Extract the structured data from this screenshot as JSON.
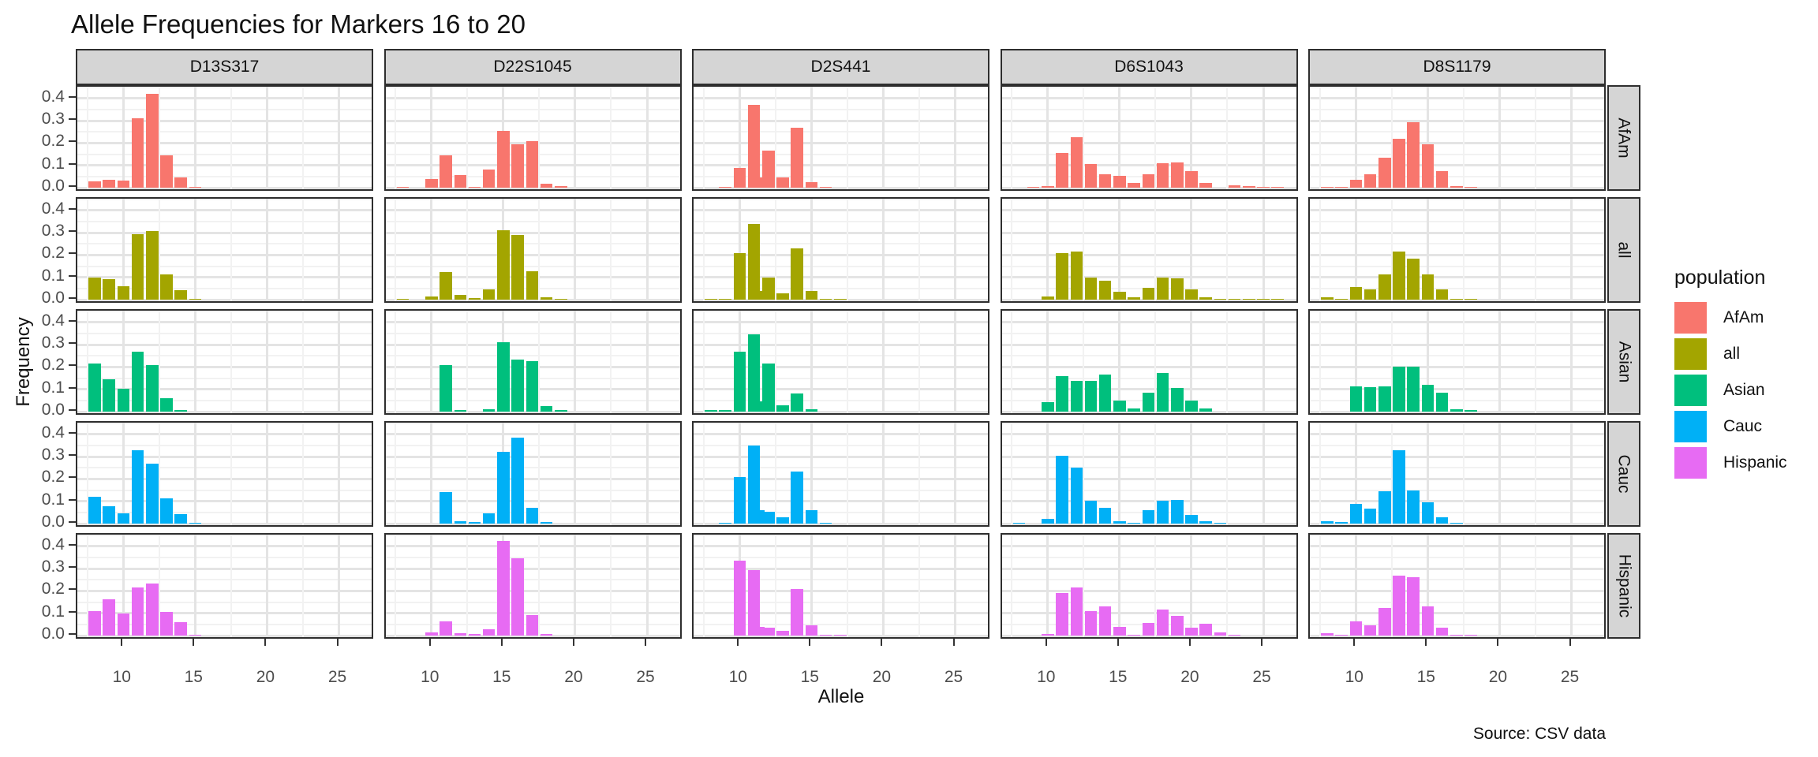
{
  "chart_data": {
    "type": "bar",
    "title": "Allele Frequencies for Markers 16 to 20",
    "xlabel": "Allele",
    "ylabel": "Frequency",
    "caption": "Source: CSV data",
    "legend": {
      "title": "population",
      "entries": [
        {
          "label": "AfAm",
          "color": "#F8766D"
        },
        {
          "label": "all",
          "color": "#A3A500"
        },
        {
          "label": "Asian",
          "color": "#00BF7D"
        },
        {
          "label": "Cauc",
          "color": "#00B0F6"
        },
        {
          "label": "Hispanic",
          "color": "#E76BF3"
        }
      ]
    },
    "facet_columns": [
      "D13S317",
      "D22S1045",
      "D2S441",
      "D6S1043",
      "D8S1179"
    ],
    "facet_rows": [
      "AfAm",
      "all",
      "Asian",
      "Cauc",
      "Hispanic"
    ],
    "x_tick_values": [
      10,
      15,
      20,
      25
    ],
    "x_tick_labels": [
      "10",
      "15",
      "20",
      "25"
    ],
    "y_tick_values": [
      0.0,
      0.1,
      0.2,
      0.3,
      0.4
    ],
    "y_tick_labels": [
      "0.0",
      "0.1",
      "0.2",
      "0.3",
      "0.4"
    ],
    "x_minor": [
      7.5,
      12.5,
      17.5,
      22.5,
      27.5
    ],
    "y_minor": [
      0.05,
      0.15,
      0.25,
      0.35,
      0.45
    ],
    "x_domain": [
      6.8,
      27.5
    ],
    "y_domain": [
      -0.021,
      0.452
    ],
    "bar_width_units": 0.85,
    "grid": true,
    "legend_position": "right",
    "series": {
      "D13S317": {
        "AfAm": [
          [
            8,
            0.028
          ],
          [
            9,
            0.035
          ],
          [
            10,
            0.031
          ],
          [
            11,
            0.31
          ],
          [
            12,
            0.42
          ],
          [
            13,
            0.145
          ],
          [
            14,
            0.048
          ],
          [
            15,
            0.002
          ]
        ],
        "all": [
          [
            8,
            0.098
          ],
          [
            9,
            0.091
          ],
          [
            10,
            0.061
          ],
          [
            11,
            0.293
          ],
          [
            12,
            0.306
          ],
          [
            13,
            0.115
          ],
          [
            14,
            0.044
          ],
          [
            15,
            0.003
          ]
        ],
        "Asian": [
          [
            8,
            0.215
          ],
          [
            9,
            0.145
          ],
          [
            10,
            0.102
          ],
          [
            11,
            0.27
          ],
          [
            12,
            0.21
          ],
          [
            13,
            0.059
          ],
          [
            14,
            0.006
          ]
        ],
        "Cauc": [
          [
            8,
            0.121
          ],
          [
            9,
            0.078
          ],
          [
            10,
            0.048
          ],
          [
            11,
            0.33
          ],
          [
            12,
            0.268
          ],
          [
            13,
            0.115
          ],
          [
            14,
            0.042
          ],
          [
            15,
            0.003
          ]
        ],
        "Hispanic": [
          [
            8,
            0.11
          ],
          [
            9,
            0.164
          ],
          [
            10,
            0.099
          ],
          [
            11,
            0.216
          ],
          [
            12,
            0.234
          ],
          [
            13,
            0.105
          ],
          [
            14,
            0.06
          ],
          [
            15,
            0.004
          ]
        ]
      },
      "D22S1045": {
        "AfAm": [
          [
            8,
            0.004
          ],
          [
            10,
            0.038
          ],
          [
            11,
            0.145
          ],
          [
            12,
            0.056
          ],
          [
            13,
            0.005
          ],
          [
            14,
            0.08
          ],
          [
            15,
            0.255
          ],
          [
            16,
            0.195
          ],
          [
            17,
            0.21
          ],
          [
            18,
            0.018
          ],
          [
            19,
            0.007
          ]
        ],
        "all": [
          [
            8,
            0.004
          ],
          [
            10,
            0.015
          ],
          [
            11,
            0.125
          ],
          [
            12,
            0.02
          ],
          [
            13,
            0.006
          ],
          [
            14,
            0.048
          ],
          [
            15,
            0.312
          ],
          [
            16,
            0.29
          ],
          [
            17,
            0.128
          ],
          [
            18,
            0.012
          ],
          [
            19,
            0.004
          ]
        ],
        "Asian": [
          [
            11,
            0.21
          ],
          [
            12,
            0.008
          ],
          [
            14,
            0.01
          ],
          [
            15,
            0.312
          ],
          [
            16,
            0.235
          ],
          [
            17,
            0.225
          ],
          [
            18,
            0.025
          ],
          [
            19,
            0.008
          ]
        ],
        "Cauc": [
          [
            11,
            0.14
          ],
          [
            12,
            0.012
          ],
          [
            13,
            0.006
          ],
          [
            14,
            0.048
          ],
          [
            15,
            0.32
          ],
          [
            16,
            0.385
          ],
          [
            17,
            0.07
          ],
          [
            18,
            0.006
          ]
        ],
        "Hispanic": [
          [
            10,
            0.015
          ],
          [
            11,
            0.065
          ],
          [
            12,
            0.012
          ],
          [
            13,
            0.008
          ],
          [
            14,
            0.028
          ],
          [
            15,
            0.425
          ],
          [
            16,
            0.348
          ],
          [
            17,
            0.092
          ],
          [
            18,
            0.006
          ]
        ]
      },
      "D2S441": {
        "AfAm": [
          [
            9,
            0.004
          ],
          [
            10,
            0.088
          ],
          [
            11,
            0.37
          ],
          [
            11.3,
            0.048
          ],
          [
            12,
            0.165
          ],
          [
            13,
            0.045
          ],
          [
            14,
            0.27
          ],
          [
            15,
            0.026
          ],
          [
            16,
            0.003
          ]
        ],
        "all": [
          [
            8,
            0.003
          ],
          [
            9,
            0.004
          ],
          [
            10,
            0.21
          ],
          [
            11,
            0.34
          ],
          [
            11.3,
            0.04
          ],
          [
            12,
            0.1
          ],
          [
            13,
            0.03
          ],
          [
            14,
            0.23
          ],
          [
            15,
            0.038
          ],
          [
            16,
            0.003
          ],
          [
            17,
            0.002
          ]
        ],
        "Asian": [
          [
            8,
            0.008
          ],
          [
            9,
            0.008
          ],
          [
            10,
            0.268
          ],
          [
            11,
            0.348
          ],
          [
            11.3,
            0.045
          ],
          [
            12,
            0.215
          ],
          [
            13,
            0.03
          ],
          [
            14,
            0.08
          ],
          [
            15,
            0.012
          ]
        ],
        "Cauc": [
          [
            9,
            0.003
          ],
          [
            10,
            0.21
          ],
          [
            11,
            0.35
          ],
          [
            11.3,
            0.06
          ],
          [
            12,
            0.055
          ],
          [
            13,
            0.03
          ],
          [
            14,
            0.235
          ],
          [
            15,
            0.06
          ],
          [
            16,
            0.003
          ]
        ],
        "Hispanic": [
          [
            10,
            0.335
          ],
          [
            11,
            0.295
          ],
          [
            11.3,
            0.04
          ],
          [
            12,
            0.035
          ],
          [
            13,
            0.022
          ],
          [
            14,
            0.21
          ],
          [
            15,
            0.045
          ],
          [
            16,
            0.004
          ],
          [
            17,
            0.004
          ]
        ]
      },
      "D6S1043": {
        "AfAm": [
          [
            9,
            0.003
          ],
          [
            10,
            0.008
          ],
          [
            11,
            0.155
          ],
          [
            12,
            0.225
          ],
          [
            13,
            0.105
          ],
          [
            14,
            0.06
          ],
          [
            15,
            0.055
          ],
          [
            16,
            0.02
          ],
          [
            17,
            0.06
          ],
          [
            18,
            0.11
          ],
          [
            19,
            0.115
          ],
          [
            20,
            0.075
          ],
          [
            21,
            0.02
          ],
          [
            23,
            0.012
          ],
          [
            24,
            0.006
          ],
          [
            25,
            0.004
          ],
          [
            26,
            0.003
          ]
        ],
        "all": [
          [
            10,
            0.015
          ],
          [
            11,
            0.21
          ],
          [
            12,
            0.215
          ],
          [
            13,
            0.1
          ],
          [
            14,
            0.085
          ],
          [
            15,
            0.035
          ],
          [
            16,
            0.01
          ],
          [
            17,
            0.055
          ],
          [
            18,
            0.1
          ],
          [
            19,
            0.095
          ],
          [
            20,
            0.045
          ],
          [
            21,
            0.012
          ],
          [
            22,
            0.003
          ],
          [
            23,
            0.004
          ],
          [
            24,
            0.002
          ],
          [
            25,
            0.002
          ],
          [
            26,
            0.001
          ]
        ],
        "Asian": [
          [
            10,
            0.042
          ],
          [
            11,
            0.16
          ],
          [
            12,
            0.137
          ],
          [
            13,
            0.137
          ],
          [
            14,
            0.168
          ],
          [
            15,
            0.05
          ],
          [
            16,
            0.015
          ],
          [
            17,
            0.085
          ],
          [
            18,
            0.172
          ],
          [
            19,
            0.105
          ],
          [
            20,
            0.05
          ],
          [
            21,
            0.015
          ]
        ],
        "Cauc": [
          [
            8,
            0.002
          ],
          [
            10,
            0.02
          ],
          [
            11,
            0.305
          ],
          [
            12,
            0.25
          ],
          [
            13,
            0.103
          ],
          [
            14,
            0.07
          ],
          [
            15,
            0.012
          ],
          [
            16,
            0.005
          ],
          [
            17,
            0.06
          ],
          [
            18,
            0.102
          ],
          [
            19,
            0.108
          ],
          [
            20,
            0.04
          ],
          [
            21,
            0.012
          ],
          [
            22,
            0.003
          ]
        ],
        "Hispanic": [
          [
            10,
            0.008
          ],
          [
            11,
            0.19
          ],
          [
            12,
            0.215
          ],
          [
            13,
            0.11
          ],
          [
            14,
            0.132
          ],
          [
            15,
            0.04
          ],
          [
            16,
            0.005
          ],
          [
            17,
            0.056
          ],
          [
            18,
            0.116
          ],
          [
            19,
            0.088
          ],
          [
            20,
            0.036
          ],
          [
            21,
            0.052
          ],
          [
            22,
            0.015
          ],
          [
            23,
            0.005
          ]
        ]
      },
      "D8S1179": {
        "AfAm": [
          [
            8,
            0.005
          ],
          [
            9,
            0.004
          ],
          [
            10,
            0.035
          ],
          [
            11,
            0.06
          ],
          [
            12,
            0.135
          ],
          [
            13,
            0.22
          ],
          [
            14,
            0.295
          ],
          [
            15,
            0.195
          ],
          [
            16,
            0.075
          ],
          [
            17,
            0.006
          ],
          [
            18,
            0.003
          ]
        ],
        "all": [
          [
            8,
            0.012
          ],
          [
            9,
            0.002
          ],
          [
            10,
            0.058
          ],
          [
            11,
            0.048
          ],
          [
            12,
            0.115
          ],
          [
            13,
            0.215
          ],
          [
            14,
            0.185
          ],
          [
            15,
            0.115
          ],
          [
            16,
            0.045
          ],
          [
            17,
            0.004
          ],
          [
            18,
            0.002
          ]
        ],
        "Asian": [
          [
            10,
            0.115
          ],
          [
            11,
            0.11
          ],
          [
            12,
            0.115
          ],
          [
            13,
            0.2
          ],
          [
            14,
            0.2
          ],
          [
            15,
            0.122
          ],
          [
            16,
            0.086
          ],
          [
            17,
            0.012
          ],
          [
            18,
            0.008
          ]
        ],
        "Cauc": [
          [
            8,
            0.012
          ],
          [
            9,
            0.008
          ],
          [
            10,
            0.09
          ],
          [
            11,
            0.068
          ],
          [
            12,
            0.145
          ],
          [
            13,
            0.33
          ],
          [
            14,
            0.15
          ],
          [
            15,
            0.095
          ],
          [
            16,
            0.03
          ],
          [
            17,
            0.002
          ]
        ],
        "Hispanic": [
          [
            8,
            0.012
          ],
          [
            9,
            0.003
          ],
          [
            10,
            0.065
          ],
          [
            11,
            0.045
          ],
          [
            12,
            0.125
          ],
          [
            13,
            0.27
          ],
          [
            14,
            0.26
          ],
          [
            15,
            0.13
          ],
          [
            16,
            0.035
          ],
          [
            17,
            0.005
          ],
          [
            18,
            0.003
          ]
        ]
      }
    }
  }
}
